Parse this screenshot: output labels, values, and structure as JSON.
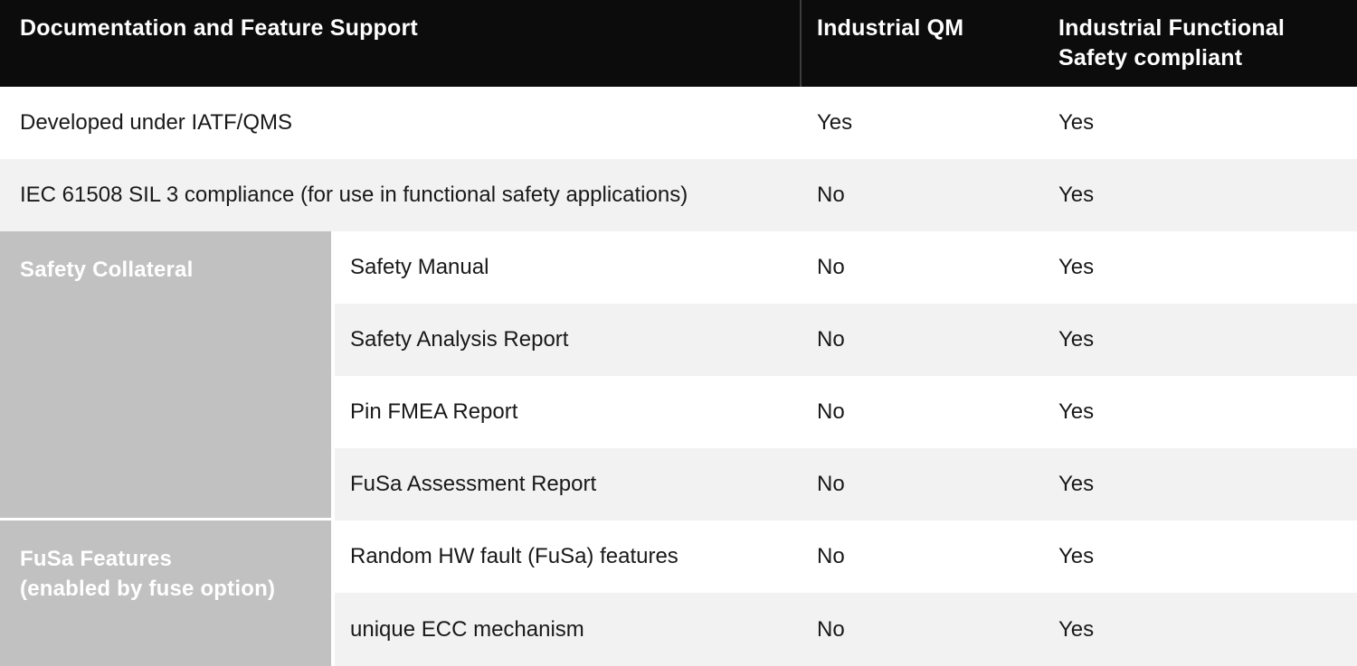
{
  "header": {
    "feature_col": "Documentation and Feature Support",
    "qm_col": "Industrial QM",
    "fs_col": "Industrial Functional Safety compliant"
  },
  "rows_top": [
    {
      "label": "Developed under IATF/QMS",
      "qm": "Yes",
      "fs": "Yes"
    },
    {
      "label": "IEC 61508 SIL 3 compliance (for use in functional safety applications)",
      "qm": "No",
      "fs": "Yes"
    }
  ],
  "groups": [
    {
      "label": "Safety Collateral",
      "label_line1": "Safety Collateral",
      "label_line2": "",
      "rows": [
        {
          "label": "Safety Manual",
          "qm": "No",
          "fs": "Yes"
        },
        {
          "label": "Safety Analysis Report",
          "qm": "No",
          "fs": "Yes"
        },
        {
          "label": "Pin FMEA Report",
          "qm": "No",
          "fs": "Yes"
        },
        {
          "label": "FuSa Assessment Report",
          "qm": "No",
          "fs": "Yes"
        }
      ]
    },
    {
      "label": "FuSa Features (enabled by fuse option)",
      "label_line1": "FuSa Features",
      "label_line2": "(enabled by fuse option)",
      "rows": [
        {
          "label": "Random HW fault (FuSa) features",
          "qm": "No",
          "fs": "Yes"
        },
        {
          "label": "unique ECC mechanism",
          "qm": "No",
          "fs": "Yes"
        }
      ]
    }
  ],
  "colors": {
    "header_bg": "#0c0c0c",
    "header_text": "#ffffff",
    "row_alt_bg": "#f2f2f2",
    "group_cell_bg": "#c1c1c1",
    "group_cell_text": "#ffffff",
    "body_text": "#191919",
    "header_divider": "#3d3d3d"
  }
}
